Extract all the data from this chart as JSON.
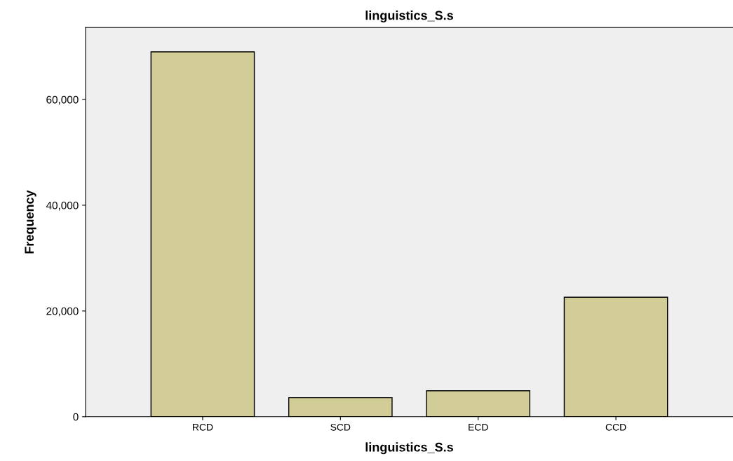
{
  "chart_data": {
    "type": "bar",
    "title": "linguistics_S.s",
    "xlabel": "linguistics_S.s",
    "ylabel": "Frequency",
    "categories": [
      "RCD",
      "SCD",
      "ECD",
      "CCD"
    ],
    "values": [
      69000,
      3600,
      4900,
      22600
    ],
    "color": "#d2cd96",
    "ylim": [
      0,
      73600
    ],
    "yticks": [
      {
        "value": 0,
        "label": "0"
      },
      {
        "value": 20000,
        "label": "20,000"
      },
      {
        "value": 40000,
        "label": "40,000"
      },
      {
        "value": 60000,
        "label": "60,000"
      }
    ],
    "grid": false,
    "legend": false
  }
}
